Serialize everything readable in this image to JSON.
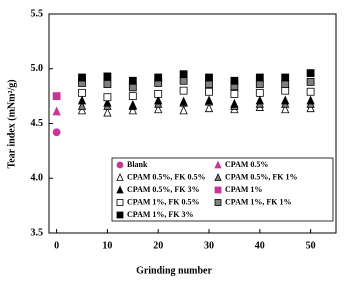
{
  "chart_data": {
    "type": "scatter",
    "x_label": "Grinding number",
    "y_label": "Tear index (mNm²/g)",
    "xlim": [
      -1.5,
      55
    ],
    "ylim": [
      3.5,
      5.5
    ],
    "xticks": [
      0,
      10,
      20,
      30,
      40,
      50
    ],
    "yticks": [
      3.5,
      {
        "value": 4,
        "label": "4.0"
      },
      4.5,
      {
        "value": 5,
        "label": "5.0"
      },
      5.5
    ],
    "series": [
      {
        "name": "Blank",
        "marker": "circle",
        "color": "#cc3399",
        "x": [
          0
        ],
        "values": [
          4.42
        ]
      },
      {
        "name": "CPAM 0.5%",
        "marker": "triangle",
        "color": "#cc3399",
        "x": [
          0
        ],
        "values": [
          4.61
        ]
      },
      {
        "name": "CPAM 0.5%, FK 0.5%",
        "marker": "triangle",
        "color": "#ffffff",
        "x": [
          5,
          10,
          15,
          20,
          25,
          30,
          35,
          40,
          45,
          50
        ],
        "values": [
          4.62,
          4.6,
          4.62,
          4.63,
          4.62,
          4.64,
          4.63,
          4.65,
          4.63,
          4.64
        ]
      },
      {
        "name": "CPAM 0.5%, FK 1%",
        "marker": "triangle",
        "color": "#808080",
        "x": [
          5,
          10,
          15,
          20,
          25,
          30,
          35,
          40,
          45,
          50
        ],
        "values": [
          4.66,
          4.66,
          4.67,
          4.68,
          4.69,
          4.7,
          4.66,
          4.68,
          4.68,
          4.68
        ]
      },
      {
        "name": "CPAM 0.5%, FK 3%",
        "marker": "triangle",
        "color": "#000000",
        "x": [
          5,
          10,
          15,
          20,
          25,
          30,
          35,
          40,
          45,
          50
        ],
        "values": [
          4.71,
          4.69,
          4.66,
          4.71,
          4.7,
          4.71,
          4.68,
          4.71,
          4.71,
          4.71
        ]
      },
      {
        "name": "CPAM 1%",
        "marker": "square",
        "color": "#cc3399",
        "x": [
          0
        ],
        "values": [
          4.75
        ]
      },
      {
        "name": "CPAM 1%, FK 0.5%",
        "marker": "square",
        "color": "#ffffff",
        "x": [
          5,
          10,
          15,
          20,
          25,
          30,
          35,
          40,
          45,
          50
        ],
        "values": [
          4.78,
          4.74,
          4.75,
          4.77,
          4.8,
          4.79,
          4.77,
          4.78,
          4.8,
          4.79
        ]
      },
      {
        "name": "CPAM 1%, FK 1%",
        "marker": "square",
        "color": "#808080",
        "x": [
          5,
          10,
          15,
          20,
          25,
          30,
          35,
          40,
          45,
          50
        ],
        "values": [
          4.87,
          4.86,
          4.83,
          4.87,
          4.89,
          4.86,
          4.84,
          4.86,
          4.86,
          4.88
        ]
      },
      {
        "name": "CPAM 1%, FK 3%",
        "marker": "square",
        "color": "#000000",
        "x": [
          5,
          10,
          15,
          20,
          25,
          30,
          35,
          40,
          45,
          50
        ],
        "values": [
          4.92,
          4.93,
          4.89,
          4.92,
          4.95,
          4.92,
          4.89,
          4.92,
          4.92,
          4.96
        ]
      }
    ]
  }
}
